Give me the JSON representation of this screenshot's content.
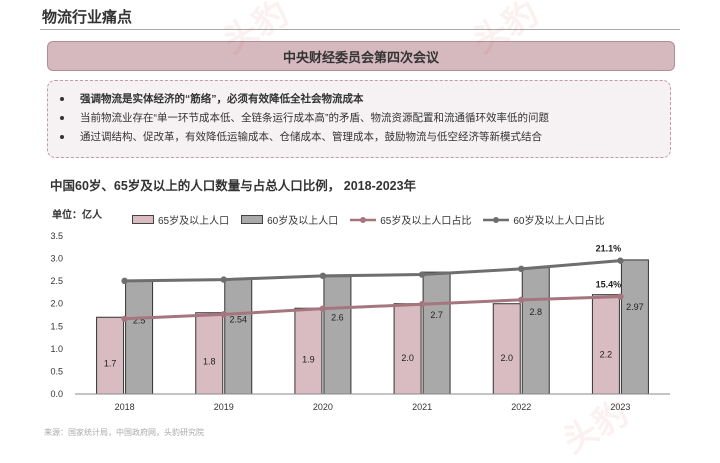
{
  "header": {
    "title": "物流行业痛点"
  },
  "banner": {
    "text": "中央财经委员会第四次会议"
  },
  "points": [
    "强调物流是实体经济的“筋络”，必须有效降低全社会物流成本",
    "当前物流业存在“单一环节成本低、全链条运行成本高”的矛盾、物流资源配置和流通循环效率低的问题",
    "通过调结构、促改革，有效降低运输成本、仓储成本、管理成本，鼓励物流与低空经济等新模式结合"
  ],
  "watermark": "头豹",
  "chart_data": {
    "type": "bar",
    "title": "中国60岁、65岁及以上的人口数量与占总人口比例， 2018-2023年",
    "ylabel": "单位：亿人",
    "categories": [
      "2018",
      "2019",
      "2020",
      "2021",
      "2022",
      "2023"
    ],
    "ylim": [
      0,
      3.5
    ],
    "yticks": [
      "0.0",
      "0.5",
      "1.0",
      "1.5",
      "2.0",
      "2.5",
      "3.0",
      "3.5"
    ],
    "series": [
      {
        "name": "65岁及以上人口",
        "kind": "bar",
        "color": "#d8bcc2",
        "values": [
          1.7,
          1.8,
          1.9,
          2.0,
          2.0,
          2.2
        ],
        "labels": [
          "1.7",
          "1.8",
          "1.9",
          "2.0",
          "2.0",
          "2.2"
        ]
      },
      {
        "name": "60岁及以上人口",
        "kind": "bar",
        "color": "#a9a9a9",
        "values": [
          2.5,
          2.54,
          2.6,
          2.7,
          2.8,
          2.97
        ],
        "labels": [
          "2.5",
          "2.54",
          "2.6",
          "2.7",
          "2.8",
          "2.97"
        ]
      },
      {
        "name": "65岁及以上人口占比",
        "kind": "line",
        "color": "#a5767e",
        "values": [
          11.9,
          12.6,
          13.5,
          14.2,
          14.9,
          15.4
        ],
        "point_labels": [
          "",
          "",
          "",
          "",
          "",
          "15.4%"
        ]
      },
      {
        "name": "60岁及以上人口占比",
        "kind": "line",
        "color": "#6e6e6e",
        "values": [
          17.9,
          18.1,
          18.7,
          18.9,
          19.8,
          21.1
        ],
        "point_labels": [
          "",
          "",
          "",
          "",
          "",
          "21.1%"
        ]
      }
    ],
    "y2lim": [
      0,
      25
    ],
    "grid": false,
    "legend": "top"
  },
  "source": "来源：国家统计局，中国政府网，头豹研究院"
}
